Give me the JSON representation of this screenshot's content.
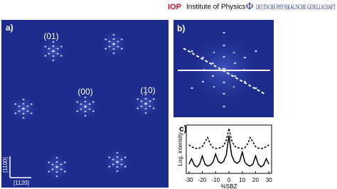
{
  "header": {
    "iop": "IOP",
    "iop_name": "Institute of Physics",
    "dpg_symbol": "Φ",
    "dpg_name": "DEUTSCHE PHYSIKALISCHE GESELLSCHAFT"
  },
  "panel_a": {
    "label": "a)",
    "spot_labels": [
      "(01)",
      "(00)",
      "(10)"
    ],
    "axis_vertical": "[1100]",
    "axis_horizontal": "[1120]"
  },
  "panel_b": {
    "label": "b)"
  },
  "panel_c": {
    "label": "c)",
    "chart_data": {
      "type": "line",
      "ylabel": "Log. intensity",
      "xlabel": "%SBZ",
      "x": [
        -30,
        -28,
        -26,
        -24,
        -22,
        -20,
        -18,
        -16,
        -14,
        -12,
        -10,
        -8,
        -6,
        -4,
        -2,
        0,
        2,
        4,
        6,
        8,
        10,
        12,
        14,
        16,
        18,
        20,
        22,
        24,
        26,
        28,
        30
      ],
      "series": [
        {
          "color": "#000000",
          "style": "dashed",
          "values": [
            0.62,
            0.58,
            0.55,
            0.54,
            0.55,
            0.58,
            0.68,
            0.78,
            0.64,
            0.56,
            0.54,
            0.55,
            0.56,
            0.6,
            0.72,
            0.98,
            0.72,
            0.6,
            0.56,
            0.55,
            0.54,
            0.56,
            0.64,
            0.78,
            0.68,
            0.58,
            0.55,
            0.54,
            0.55,
            0.58,
            0.62
          ]
        },
        {
          "color": "#000000",
          "style": "solid",
          "values": [
            0.2,
            0.32,
            0.18,
            0.14,
            0.2,
            0.38,
            0.2,
            0.16,
            0.18,
            0.24,
            0.42,
            0.26,
            0.22,
            0.26,
            0.4,
            0.82,
            0.4,
            0.26,
            0.22,
            0.26,
            0.46,
            0.24,
            0.18,
            0.16,
            0.2,
            0.38,
            0.2,
            0.14,
            0.18,
            0.32,
            0.2
          ]
        }
      ],
      "xlim": [
        -32,
        32
      ],
      "ylim": [
        0,
        1.05
      ],
      "xticks": [
        -30,
        -20,
        -10,
        0,
        10,
        20,
        30
      ]
    }
  }
}
